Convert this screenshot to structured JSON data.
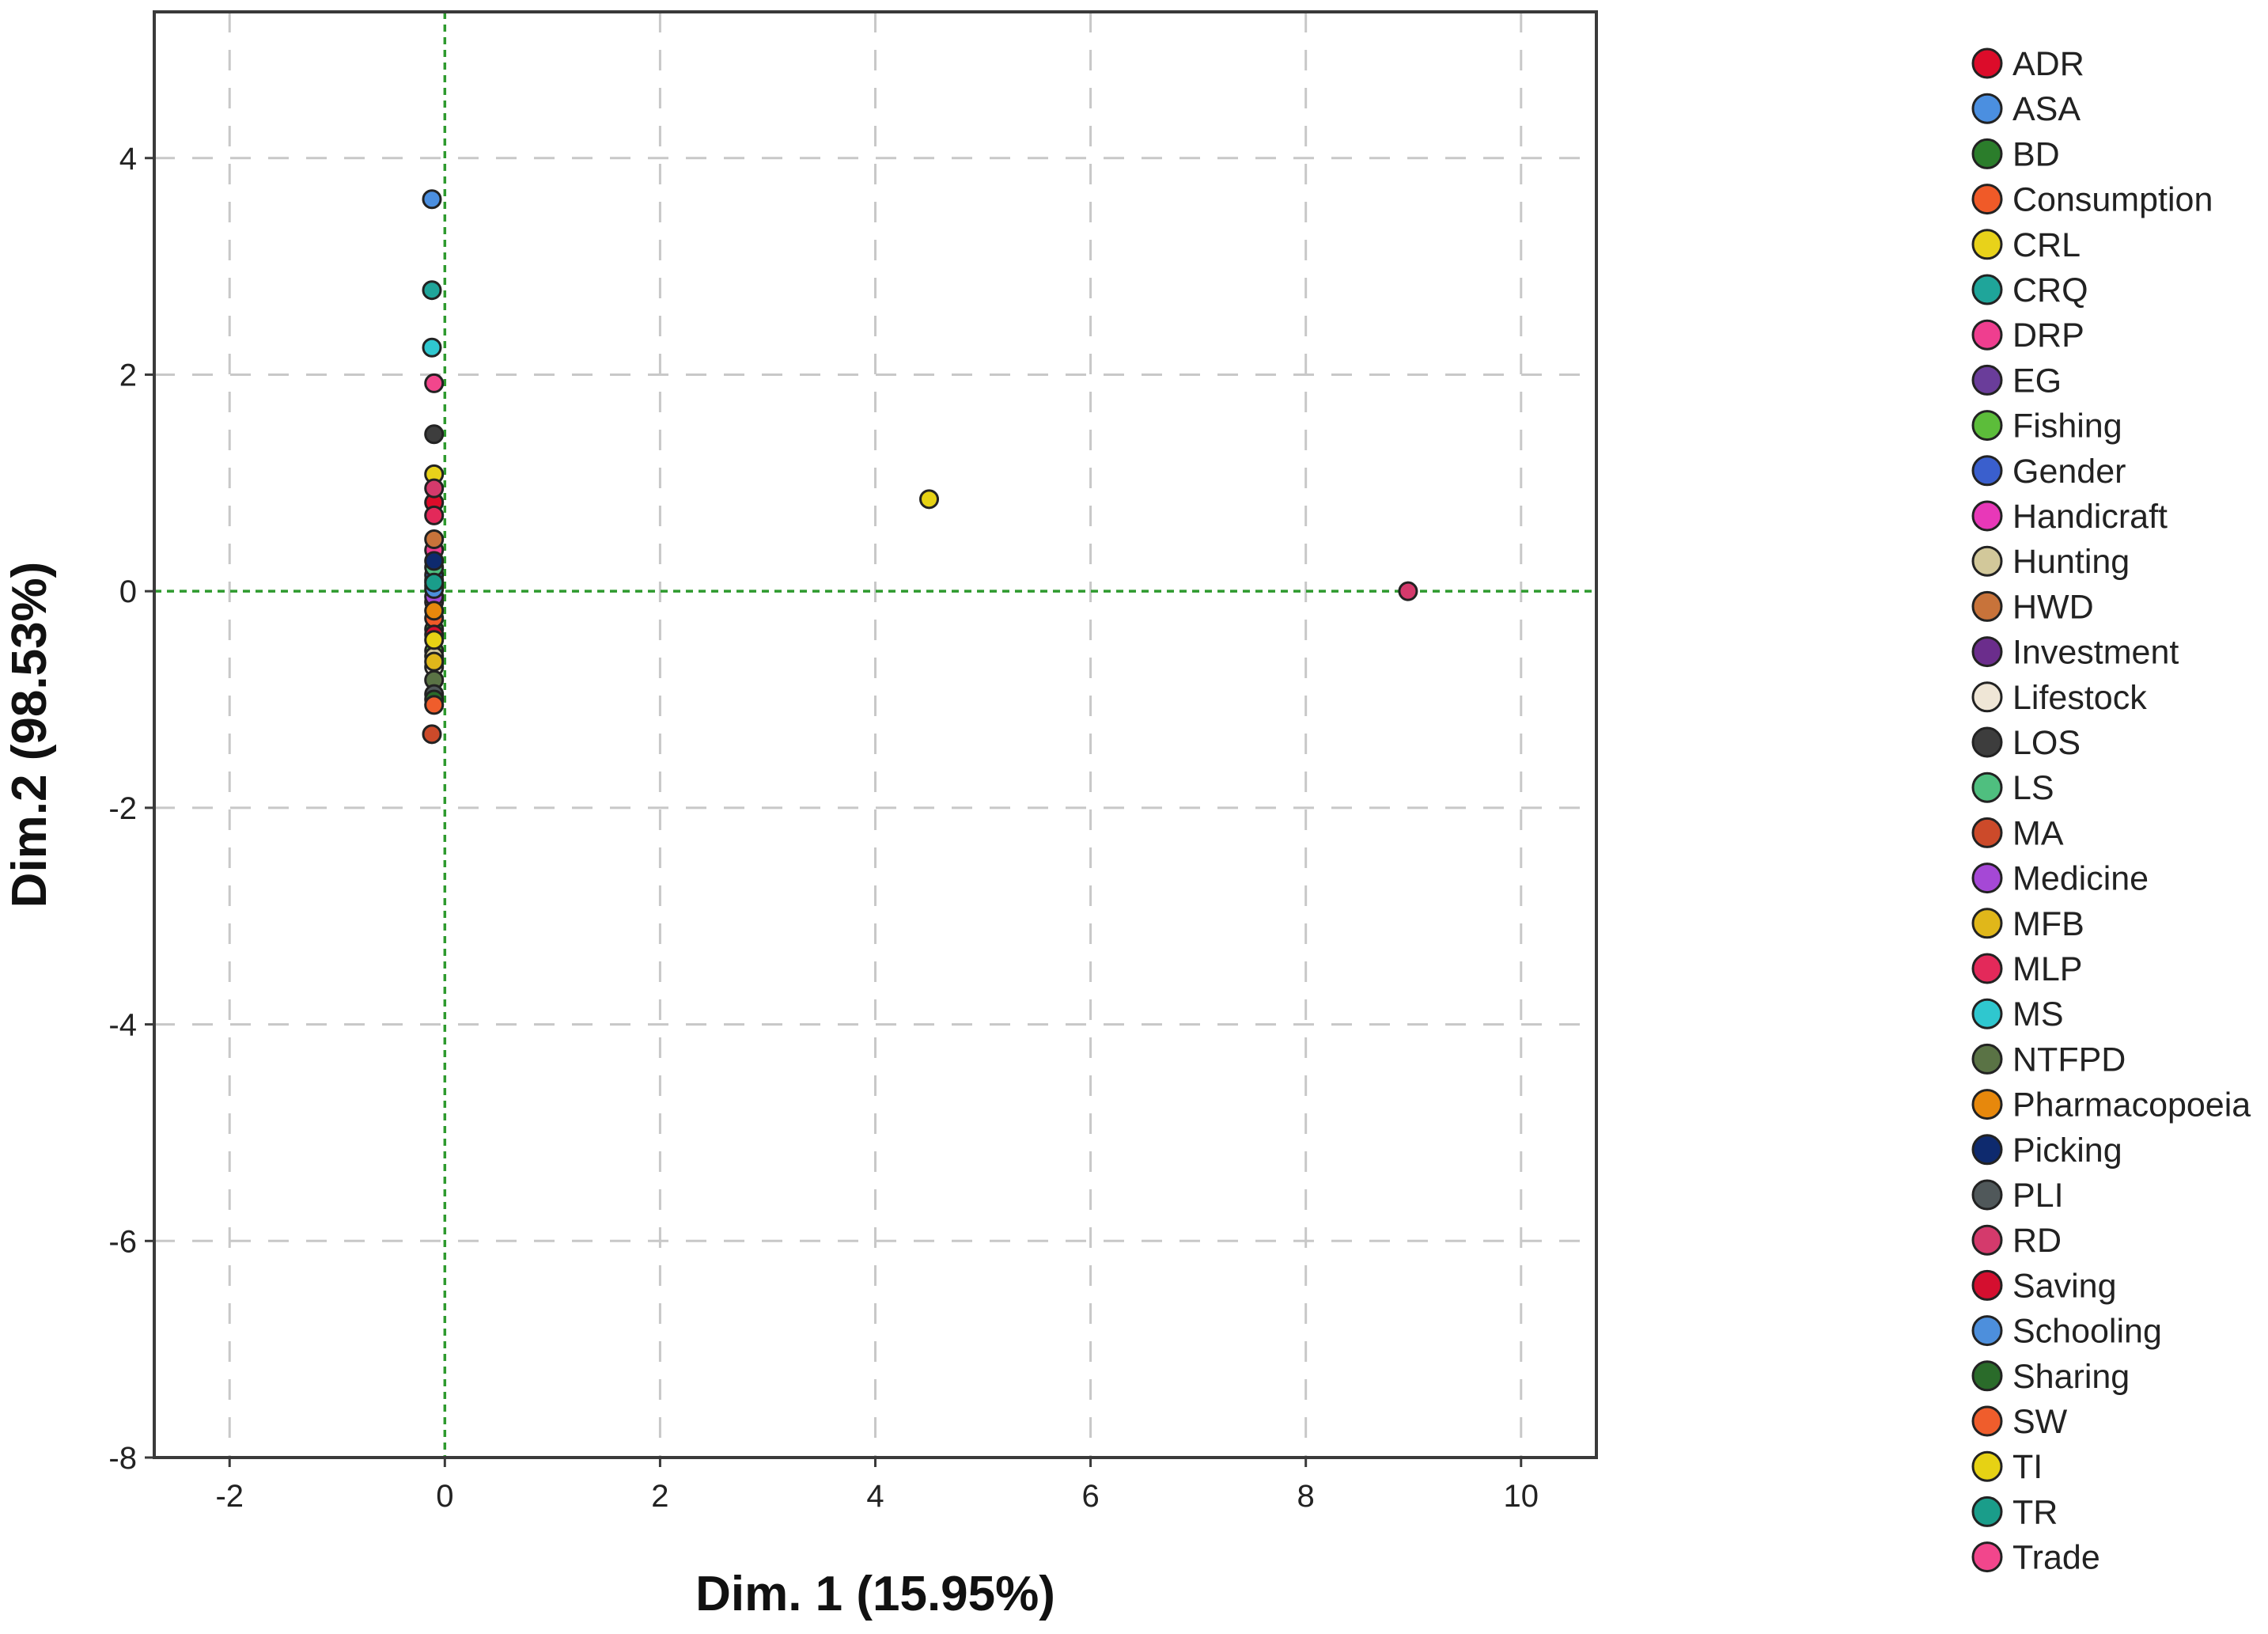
{
  "chart_data": {
    "type": "scatter",
    "xlabel": "Dim. 1 (15.95%)",
    "ylabel": "Dim.2 (98.53%)",
    "xlim": [
      -2.7,
      10.7
    ],
    "ylim": [
      -8,
      5.35
    ],
    "x_ticks": [
      -2,
      0,
      2,
      4,
      6,
      8,
      10
    ],
    "y_ticks": [
      4,
      2,
      0,
      -2,
      -4,
      -6,
      -8
    ],
    "x_tick_labels": [
      "-2",
      "0",
      "2",
      "4",
      "6",
      "8",
      "10"
    ],
    "y_tick_labels": [
      "4",
      "2",
      "0",
      "-2",
      "-4",
      "-6",
      "-8"
    ],
    "grid": true,
    "grid_style": "dashed",
    "reference_lines": {
      "x": 0,
      "y": 0,
      "color": "#2e9a2e",
      "style": "dotted"
    },
    "legend_position": "right",
    "series": [
      {
        "name": "ADR",
        "color": "#dc0c2a",
        "points": [
          [
            -0.1,
            0.82
          ]
        ]
      },
      {
        "name": "ASA",
        "color": "#4b8fe0",
        "points": [
          [
            -0.12,
            3.62
          ]
        ]
      },
      {
        "name": "BD",
        "color": "#2b7d2b",
        "points": [
          [
            -0.1,
            -0.35
          ]
        ]
      },
      {
        "name": "Consumption",
        "color": "#f05a28",
        "points": [
          [
            -0.1,
            -0.25
          ]
        ]
      },
      {
        "name": "CRL",
        "color": "#e8d21a",
        "points": [
          [
            -0.1,
            1.08
          ]
        ]
      },
      {
        "name": "CRQ",
        "color": "#1fa59a",
        "points": [
          [
            -0.12,
            2.78
          ]
        ]
      },
      {
        "name": "DRP",
        "color": "#ef3e8f",
        "points": [
          [
            -0.1,
            0.38
          ]
        ]
      },
      {
        "name": "EG",
        "color": "#6a3d9a",
        "points": [
          [
            -0.1,
            0.1
          ]
        ]
      },
      {
        "name": "Fishing",
        "color": "#5cbd3a",
        "points": [
          [
            -0.1,
            -0.55
          ]
        ]
      },
      {
        "name": "Gender",
        "color": "#3a5fcd",
        "points": [
          [
            -0.1,
            0.15
          ]
        ]
      },
      {
        "name": "Handicraft",
        "color": "#e838b8",
        "points": [
          [
            -0.1,
            -0.1
          ]
        ]
      },
      {
        "name": "Hunting",
        "color": "#d2c89a",
        "points": [
          [
            -0.1,
            -0.6
          ]
        ]
      },
      {
        "name": "HWD",
        "color": "#c8733a",
        "points": [
          [
            -0.1,
            0.48
          ]
        ]
      },
      {
        "name": "Investment",
        "color": "#6b2d8c",
        "points": [
          [
            -0.1,
            0.05
          ]
        ]
      },
      {
        "name": "Lifestock",
        "color": "#efe6d6",
        "points": [
          [
            -0.1,
            -0.7
          ]
        ]
      },
      {
        "name": "LOS",
        "color": "#3d3d3d",
        "points": [
          [
            -0.1,
            1.45
          ]
        ]
      },
      {
        "name": "LS",
        "color": "#4fbf7f",
        "points": [
          [
            -0.1,
            0.22
          ]
        ]
      },
      {
        "name": "MA",
        "color": "#cc4a2a",
        "points": [
          [
            -0.12,
            -1.32
          ]
        ]
      },
      {
        "name": "Medicine",
        "color": "#a548d6",
        "points": [
          [
            -0.1,
            -0.05
          ]
        ]
      },
      {
        "name": "MFB",
        "color": "#e0b71a",
        "points": [
          [
            -0.1,
            -0.65
          ]
        ]
      },
      {
        "name": "MLP",
        "color": "#e3295a",
        "points": [
          [
            -0.1,
            0.7
          ]
        ]
      },
      {
        "name": "MS",
        "color": "#2fc7cf",
        "points": [
          [
            -0.12,
            2.25
          ]
        ]
      },
      {
        "name": "NTFPD",
        "color": "#5a7345",
        "points": [
          [
            -0.1,
            -0.82
          ]
        ]
      },
      {
        "name": "Pharmacopoeia",
        "color": "#e7880c",
        "points": [
          [
            -0.1,
            -0.18
          ]
        ]
      },
      {
        "name": "Picking",
        "color": "#0e2a6e",
        "points": [
          [
            -0.1,
            0.28
          ]
        ]
      },
      {
        "name": "PLI",
        "color": "#50585a",
        "points": [
          [
            -0.1,
            -0.95
          ]
        ]
      },
      {
        "name": "RD",
        "color": "#d43a6c",
        "points": [
          [
            -0.1,
            0.95
          ],
          [
            8.95,
            0.0
          ]
        ]
      },
      {
        "name": "Saving",
        "color": "#d40f2f",
        "points": [
          [
            -0.1,
            -0.4
          ]
        ]
      },
      {
        "name": "Schooling",
        "color": "#4d8fdc",
        "points": [
          [
            -0.1,
            0.02
          ]
        ]
      },
      {
        "name": "Sharing",
        "color": "#2a6b2a",
        "points": [
          [
            -0.1,
            -1.0
          ]
        ]
      },
      {
        "name": "SW",
        "color": "#ef5d2c",
        "points": [
          [
            -0.1,
            -1.05
          ]
        ]
      },
      {
        "name": "TI",
        "color": "#e6d214",
        "points": [
          [
            -0.1,
            -0.45
          ],
          [
            4.5,
            0.85
          ]
        ]
      },
      {
        "name": "TR",
        "color": "#1a9d8a",
        "points": [
          [
            -0.1,
            0.08
          ]
        ]
      },
      {
        "name": "Trade",
        "color": "#f2468c",
        "points": [
          [
            -0.1,
            1.92
          ]
        ]
      }
    ]
  }
}
